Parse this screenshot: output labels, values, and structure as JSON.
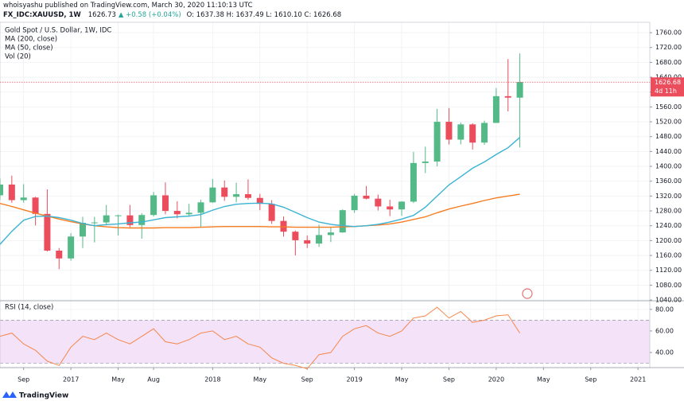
{
  "header": {
    "publisher": "whoisyashu published on TradingView.com, March 30, 2020 11:10:13 UTC",
    "symbol": "FX_IDC:XAUUSD, 1W",
    "last": "1626.73",
    "change": "▲ +0.58 (+0.04%)",
    "ohlc": "O: 1637.38 H: 1637.49 L: 1610.10 C: 1626.68"
  },
  "footer": {
    "brand": "TradingView"
  },
  "chart_data": [
    {
      "type": "candlestick",
      "title": "Gold Spot / U.S. Dollar, 1W, IDC",
      "legend": [
        "MA (200, close)",
        "MA (50, close)",
        "Vol (20)"
      ],
      "x": [
        "2016-07",
        "2016-08",
        "2016-09",
        "2016-10",
        "2016-11",
        "2016-12",
        "2017-01",
        "2017-02",
        "2017-03",
        "2017-04",
        "2017-05",
        "2017-06",
        "2017-07",
        "2017-08",
        "2017-09",
        "2017-10",
        "2017-11",
        "2017-12",
        "2018-01",
        "2018-02",
        "2018-03",
        "2018-04",
        "2018-05",
        "2018-06",
        "2018-07",
        "2018-08",
        "2018-09",
        "2018-10",
        "2018-11",
        "2018-12",
        "2019-01",
        "2019-02",
        "2019-03",
        "2019-04",
        "2019-05",
        "2019-06",
        "2019-07",
        "2019-08",
        "2019-09",
        "2019-10",
        "2019-11",
        "2019-12",
        "2020-01",
        "2020-02",
        "2020-03"
      ],
      "open": [
        1322,
        1351,
        1309,
        1316,
        1272,
        1173,
        1152,
        1211,
        1248,
        1249,
        1268,
        1268,
        1242,
        1269,
        1322,
        1280,
        1271,
        1275,
        1303,
        1343,
        1318,
        1325,
        1315,
        1299,
        1253,
        1224,
        1201,
        1192,
        1215,
        1222,
        1282,
        1321,
        1313,
        1292,
        1284,
        1305,
        1409,
        1413,
        1520,
        1472,
        1513,
        1464,
        1517,
        1589,
        1585
      ],
      "high": [
        1367,
        1375,
        1352,
        1318,
        1338,
        1180,
        1220,
        1264,
        1264,
        1296,
        1270,
        1296,
        1274,
        1331,
        1357,
        1306,
        1299,
        1310,
        1366,
        1362,
        1356,
        1365,
        1326,
        1309,
        1265,
        1227,
        1214,
        1243,
        1237,
        1284,
        1326,
        1347,
        1324,
        1310,
        1306,
        1439,
        1453,
        1555,
        1557,
        1518,
        1516,
        1523,
        1611,
        1689,
        1704
      ],
      "low": [
        1310,
        1302,
        1302,
        1241,
        1171,
        1123,
        1146,
        1180,
        1195,
        1241,
        1214,
        1236,
        1205,
        1265,
        1271,
        1260,
        1264,
        1236,
        1302,
        1307,
        1303,
        1310,
        1282,
        1245,
        1211,
        1160,
        1180,
        1183,
        1196,
        1221,
        1275,
        1311,
        1281,
        1266,
        1267,
        1301,
        1382,
        1400,
        1459,
        1459,
        1445,
        1458,
        1517,
        1548,
        1451
      ],
      "close": [
        1351,
        1309,
        1316,
        1272,
        1173,
        1152,
        1211,
        1248,
        1249,
        1268,
        1268,
        1242,
        1269,
        1322,
        1280,
        1271,
        1275,
        1303,
        1343,
        1318,
        1325,
        1315,
        1299,
        1253,
        1224,
        1201,
        1192,
        1215,
        1222,
        1282,
        1321,
        1313,
        1292,
        1284,
        1305,
        1409,
        1413,
        1520,
        1472,
        1513,
        1464,
        1517,
        1589,
        1585,
        1627
      ],
      "up_color": "#53b987",
      "down_color": "#eb4d5c",
      "series": [
        {
          "name": "MA (200, close)",
          "color": "#f57c1f",
          "values": [
            1300,
            1292,
            1283,
            1274,
            1266,
            1258,
            1251,
            1245,
            1240,
            1237,
            1235,
            1234,
            1234,
            1234,
            1235,
            1235,
            1235,
            1236,
            1237,
            1238,
            1238,
            1238,
            1238,
            1237,
            1237,
            1236,
            1236,
            1236,
            1236,
            1237,
            1238,
            1240,
            1242,
            1245,
            1250,
            1257,
            1264,
            1275,
            1285,
            1293,
            1300,
            1308,
            1315,
            1320,
            1325
          ]
        },
        {
          "name": "MA (50, close)",
          "color": "#3bb3d3",
          "values": [
            1190,
            1225,
            1255,
            1265,
            1266,
            1262,
            1255,
            1246,
            1240,
            1243,
            1245,
            1248,
            1250,
            1256,
            1262,
            1264,
            1266,
            1270,
            1282,
            1292,
            1298,
            1300,
            1301,
            1299,
            1290,
            1276,
            1262,
            1250,
            1244,
            1240,
            1238,
            1240,
            1244,
            1250,
            1258,
            1268,
            1290,
            1320,
            1350,
            1372,
            1395,
            1412,
            1432,
            1450,
            1478
          ]
        }
      ],
      "last_price": {
        "value": 1626.68,
        "label": "1626.68",
        "countdown": "4d 11h",
        "color": "#eb4d5c"
      },
      "xlim": [
        "2016-07",
        "2021-02"
      ],
      "xticks": [
        {
          "value": "2016-09",
          "label": "Sep"
        },
        {
          "value": "2017-01",
          "label": "2017"
        },
        {
          "value": "2017-05",
          "label": "May"
        },
        {
          "value": "2017-08",
          "label": "Aug"
        },
        {
          "value": "2018-01",
          "label": "2018"
        },
        {
          "value": "2018-05",
          "label": "May"
        },
        {
          "value": "2018-09",
          "label": "Sep"
        },
        {
          "value": "2019-01",
          "label": "2019"
        },
        {
          "value": "2019-05",
          "label": "May"
        },
        {
          "value": "2019-09",
          "label": "Sep"
        },
        {
          "value": "2020-01",
          "label": "2020"
        },
        {
          "value": "2020-05",
          "label": "May"
        },
        {
          "value": "2020-09",
          "label": "Sep"
        },
        {
          "value": "2021-01",
          "label": "2021"
        }
      ],
      "ylim": [
        1038,
        1788
      ],
      "yticks": [
        {
          "value": 1040,
          "label": "1040.00"
        },
        {
          "value": 1080,
          "label": "1080.00"
        },
        {
          "value": 1120,
          "label": "1120.00"
        },
        {
          "value": 1160,
          "label": "1160.00"
        },
        {
          "value": 1200,
          "label": "1200.00"
        },
        {
          "value": 1240,
          "label": "1240.00"
        },
        {
          "value": 1280,
          "label": "1280.00"
        },
        {
          "value": 1320,
          "label": "1320.00"
        },
        {
          "value": 1360,
          "label": "1360.00"
        },
        {
          "value": 1400,
          "label": "1400.00"
        },
        {
          "value": 1440,
          "label": "1440.00"
        },
        {
          "value": 1480,
          "label": "1480.00"
        },
        {
          "value": 1520,
          "label": "1520.00"
        },
        {
          "value": 1560,
          "label": "1560.00"
        },
        {
          "value": 1600,
          "label": "1600.00"
        },
        {
          "value": 1640,
          "label": "1640.00"
        },
        {
          "value": 1680,
          "label": "1680.00"
        },
        {
          "value": 1720,
          "label": "1720.00"
        },
        {
          "value": 1760,
          "label": "1760.00"
        }
      ],
      "grid": true
    },
    {
      "type": "line",
      "title": "RSI (14, close)",
      "x": [
        "2016-07",
        "2016-08",
        "2016-09",
        "2016-10",
        "2016-11",
        "2016-12",
        "2017-01",
        "2017-02",
        "2017-03",
        "2017-04",
        "2017-05",
        "2017-06",
        "2017-07",
        "2017-08",
        "2017-09",
        "2017-10",
        "2017-11",
        "2017-12",
        "2018-01",
        "2018-02",
        "2018-03",
        "2018-04",
        "2018-05",
        "2018-06",
        "2018-07",
        "2018-08",
        "2018-09",
        "2018-10",
        "2018-11",
        "2018-12",
        "2019-01",
        "2019-02",
        "2019-03",
        "2019-04",
        "2019-05",
        "2019-06",
        "2019-07",
        "2019-08",
        "2019-09",
        "2019-10",
        "2019-11",
        "2019-12",
        "2020-01",
        "2020-02",
        "2020-03"
      ],
      "series": [
        {
          "name": "RSI (14, close)",
          "color": "#f4874b",
          "values": [
            55,
            58,
            48,
            42,
            32,
            28,
            45,
            55,
            52,
            58,
            52,
            48,
            55,
            62,
            50,
            48,
            52,
            58,
            60,
            52,
            55,
            48,
            45,
            35,
            30,
            28,
            25,
            38,
            40,
            55,
            62,
            65,
            58,
            55,
            60,
            72,
            74,
            82,
            72,
            78,
            68,
            70,
            74,
            75,
            58
          ]
        }
      ],
      "band": [
        30,
        70
      ],
      "band_color": "#f3e2f8",
      "xlim": [
        "2016-07",
        "2021-02"
      ],
      "ylim": [
        26,
        88
      ],
      "yticks": [
        {
          "value": 40,
          "label": "40.00"
        },
        {
          "value": 60,
          "label": "60.00"
        },
        {
          "value": 80,
          "label": "80.00"
        }
      ],
      "grid": true
    }
  ]
}
